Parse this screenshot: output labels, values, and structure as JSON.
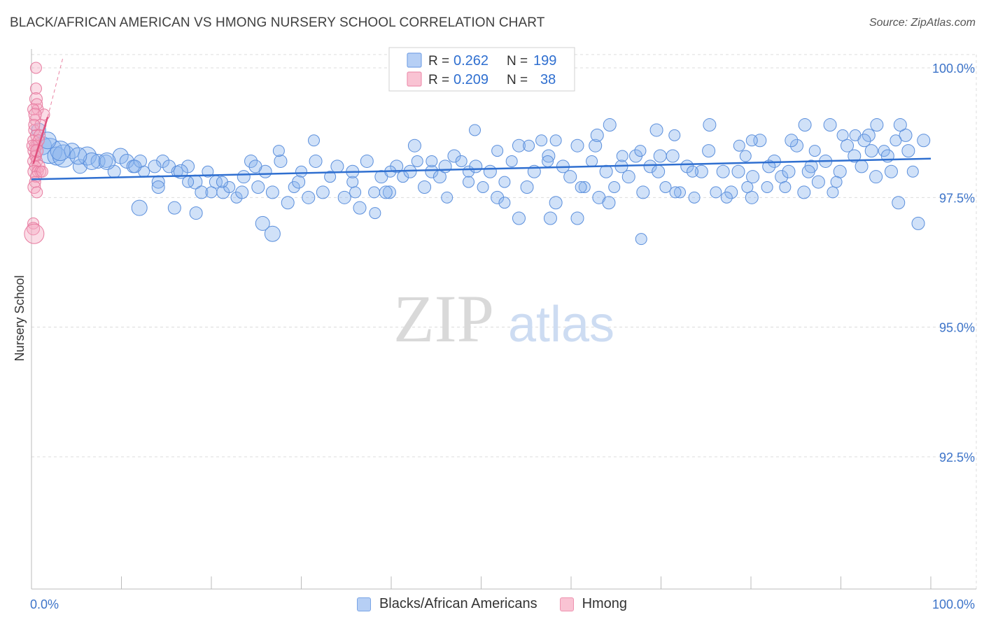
{
  "chart_data": {
    "type": "scatter",
    "title": "BLACK/AFRICAN AMERICAN VS HMONG NURSERY SCHOOL CORRELATION CHART",
    "source": "Source: ZipAtlas.com",
    "watermark": {
      "zip": "ZIP",
      "atlas": "atlas"
    },
    "xlabel": "",
    "ylabel": "Nursery School",
    "xlim": [
      0,
      100
    ],
    "ylim": [
      90.1,
      100.6
    ],
    "y_ticks": [
      {
        "value": 100.0,
        "label": "100.0%"
      },
      {
        "value": 97.5,
        "label": "97.5%"
      },
      {
        "value": 95.0,
        "label": "95.0%"
      },
      {
        "value": 92.5,
        "label": "92.5%"
      }
    ],
    "x_tick_labels": {
      "left": "0.0%",
      "right": "100.0%"
    },
    "grid": true,
    "legend_stats": [
      {
        "r_label": "R =",
        "r_value": "0.262",
        "n_label": "N =",
        "n_value": "199"
      },
      {
        "r_label": "R =",
        "r_value": "0.209",
        "n_label": "N =",
        "n_value": "38"
      }
    ],
    "series": [
      {
        "name": "Blacks/African Americans",
        "color": "#8ab4ee",
        "stroke": "#5b8fdc",
        "line_color": "#2f6fd0",
        "trend": {
          "x0": 0,
          "y0": 97.85,
          "x1": 100,
          "y1": 98.25
        },
        "points": [
          [
            1.2,
            98.5,
            13
          ],
          [
            2.0,
            98.4,
            18
          ],
          [
            2.8,
            98.3,
            13
          ],
          [
            3.6,
            98.3,
            16
          ],
          [
            4.5,
            98.4,
            11
          ],
          [
            5.4,
            98.1,
            10
          ],
          [
            6.2,
            98.3,
            13
          ],
          [
            7.4,
            98.2,
            10
          ],
          [
            8.3,
            98.2,
            9
          ],
          [
            9.2,
            98.0,
            9
          ],
          [
            9.9,
            98.3,
            11
          ],
          [
            10.6,
            98.2,
            10
          ],
          [
            11.3,
            98.1,
            9
          ],
          [
            12.1,
            98.2,
            9
          ],
          [
            12.5,
            98.0,
            8
          ],
          [
            14.1,
            97.8,
            9
          ],
          [
            14.6,
            98.2,
            9
          ],
          [
            15.3,
            98.1,
            9
          ],
          [
            16.2,
            98.0,
            8
          ],
          [
            17.4,
            98.1,
            9
          ],
          [
            18.2,
            97.8,
            10
          ],
          [
            18.9,
            97.6,
            9
          ],
          [
            19.6,
            98.0,
            8
          ],
          [
            20.5,
            97.8,
            9
          ],
          [
            21.3,
            97.6,
            9
          ],
          [
            22.0,
            97.7,
            8
          ],
          [
            22.8,
            97.5,
            8
          ],
          [
            23.6,
            97.9,
            9
          ],
          [
            24.4,
            98.2,
            9
          ],
          [
            25.2,
            97.7,
            9
          ],
          [
            26.0,
            98.0,
            9
          ],
          [
            26.8,
            97.6,
            9
          ],
          [
            27.7,
            98.2,
            9
          ],
          [
            28.5,
            97.4,
            9
          ],
          [
            29.2,
            97.7,
            8
          ],
          [
            30.0,
            98.0,
            8
          ],
          [
            30.8,
            97.5,
            9
          ],
          [
            31.6,
            98.2,
            9
          ],
          [
            32.4,
            97.6,
            9
          ],
          [
            33.2,
            97.9,
            8
          ],
          [
            34.0,
            98.1,
            9
          ],
          [
            34.8,
            97.5,
            9
          ],
          [
            35.7,
            97.8,
            8
          ],
          [
            36.5,
            97.3,
            9
          ],
          [
            37.3,
            98.2,
            9
          ],
          [
            38.1,
            97.6,
            8
          ],
          [
            38.9,
            97.9,
            9
          ],
          [
            39.8,
            97.6,
            9
          ],
          [
            40.6,
            98.1,
            9
          ],
          [
            41.3,
            97.9,
            8
          ],
          [
            42.1,
            98.0,
            9
          ],
          [
            42.9,
            98.2,
            8
          ],
          [
            43.7,
            97.7,
            9
          ],
          [
            44.5,
            98.0,
            9
          ],
          [
            45.4,
            97.9,
            9
          ],
          [
            46.2,
            97.5,
            8
          ],
          [
            47.0,
            98.3,
            9
          ],
          [
            47.8,
            98.2,
            8
          ],
          [
            48.6,
            98.0,
            8
          ],
          [
            49.4,
            98.1,
            9
          ],
          [
            50.2,
            97.7,
            8
          ],
          [
            51.0,
            98.0,
            9
          ],
          [
            51.8,
            97.5,
            9
          ],
          [
            52.6,
            97.8,
            8
          ],
          [
            53.4,
            98.2,
            8
          ],
          [
            54.2,
            97.1,
            9
          ],
          [
            55.1,
            97.7,
            9
          ],
          [
            55.9,
            98.0,
            9
          ],
          [
            56.7,
            98.6,
            8
          ],
          [
            57.5,
            98.3,
            9
          ],
          [
            58.3,
            97.4,
            9
          ],
          [
            59.1,
            98.1,
            9
          ],
          [
            59.9,
            97.9,
            9
          ],
          [
            60.7,
            98.5,
            9
          ],
          [
            61.5,
            97.7,
            8
          ],
          [
            62.3,
            98.2,
            8
          ],
          [
            63.1,
            97.5,
            9
          ],
          [
            63.9,
            98.0,
            9
          ],
          [
            64.8,
            97.7,
            8
          ],
          [
            65.6,
            98.1,
            9
          ],
          [
            66.4,
            97.9,
            9
          ],
          [
            67.2,
            98.3,
            9
          ],
          [
            68.0,
            97.6,
            9
          ],
          [
            68.8,
            98.1,
            9
          ],
          [
            69.7,
            98.0,
            9
          ],
          [
            70.5,
            97.7,
            8
          ],
          [
            71.3,
            98.3,
            9
          ],
          [
            72.1,
            97.6,
            8
          ],
          [
            72.9,
            98.1,
            9
          ],
          [
            73.7,
            97.5,
            8
          ],
          [
            74.5,
            98.0,
            9
          ],
          [
            75.3,
            98.4,
            9
          ],
          [
            76.1,
            97.6,
            8
          ],
          [
            76.9,
            98.0,
            9
          ],
          [
            77.8,
            97.6,
            9
          ],
          [
            78.6,
            98.0,
            9
          ],
          [
            79.4,
            98.3,
            8
          ],
          [
            80.2,
            97.9,
            9
          ],
          [
            81.0,
            98.6,
            9
          ],
          [
            81.8,
            97.7,
            8
          ],
          [
            82.6,
            98.2,
            9
          ],
          [
            83.4,
            97.9,
            9
          ],
          [
            84.2,
            98.0,
            9
          ],
          [
            85.1,
            98.5,
            9
          ],
          [
            85.9,
            97.6,
            9
          ],
          [
            86.7,
            98.1,
            9
          ],
          [
            87.5,
            97.8,
            9
          ],
          [
            88.3,
            98.2,
            9
          ],
          [
            89.1,
            97.6,
            8
          ],
          [
            89.9,
            98.0,
            9
          ],
          [
            90.7,
            98.5,
            9
          ],
          [
            91.5,
            98.3,
            9
          ],
          [
            92.3,
            98.1,
            9
          ],
          [
            93.1,
            98.7,
            9
          ],
          [
            93.9,
            97.9,
            9
          ],
          [
            94.8,
            98.4,
            8
          ],
          [
            95.6,
            98.0,
            9
          ],
          [
            96.4,
            97.4,
            9
          ],
          [
            97.2,
            98.7,
            9
          ],
          [
            98.0,
            98.0,
            8
          ],
          [
            98.6,
            97.0,
            9
          ],
          [
            99.2,
            98.6,
            9
          ],
          [
            38.2,
            97.2,
            8
          ],
          [
            42.6,
            98.5,
            9
          ],
          [
            49.3,
            98.8,
            8
          ],
          [
            54.2,
            98.5,
            9
          ],
          [
            57.4,
            98.2,
            8
          ],
          [
            62.7,
            98.5,
            9
          ],
          [
            67.7,
            98.4,
            8
          ],
          [
            71.5,
            98.7,
            8
          ],
          [
            75.4,
            98.9,
            9
          ],
          [
            78.7,
            98.5,
            8
          ],
          [
            84.5,
            98.6,
            9
          ],
          [
            88.8,
            98.9,
            9
          ],
          [
            94.0,
            98.9,
            9
          ],
          [
            96.6,
            98.9,
            9
          ],
          [
            90.2,
            98.7,
            8
          ],
          [
            87.1,
            98.4,
            8
          ],
          [
            86.0,
            98.9,
            9
          ],
          [
            80.1,
            98.6,
            8
          ],
          [
            69.5,
            98.8,
            9
          ],
          [
            64.3,
            98.9,
            9
          ],
          [
            58.3,
            98.6,
            8
          ],
          [
            51.8,
            98.4,
            8
          ],
          [
            46.0,
            98.1,
            9
          ],
          [
            44.5,
            98.2,
            8
          ],
          [
            39.9,
            98.0,
            8
          ],
          [
            35.7,
            98.0,
            9
          ],
          [
            31.4,
            98.6,
            8
          ],
          [
            27.5,
            98.4,
            8
          ],
          [
            24.9,
            98.1,
            9
          ],
          [
            21.2,
            97.8,
            8
          ],
          [
            18.3,
            97.2,
            9
          ],
          [
            15.9,
            97.3,
            9
          ],
          [
            14.1,
            97.7,
            9
          ],
          [
            12.0,
            97.3,
            11
          ],
          [
            25.7,
            97.0,
            10
          ],
          [
            26.8,
            96.8,
            11
          ],
          [
            57.7,
            97.1,
            9
          ],
          [
            60.7,
            97.1,
            9
          ],
          [
            67.8,
            96.7,
            8
          ],
          [
            77.3,
            97.5,
            8
          ],
          [
            80.1,
            97.5,
            9
          ],
          [
            52.6,
            97.4,
            8
          ],
          [
            55.3,
            98.5,
            8
          ],
          [
            62.9,
            98.7,
            9
          ],
          [
            65.7,
            98.3,
            8
          ],
          [
            69.9,
            98.3,
            9
          ],
          [
            73.5,
            98.0,
            8
          ],
          [
            82.0,
            98.1,
            9
          ],
          [
            86.4,
            98.0,
            9
          ],
          [
            91.6,
            98.7,
            8
          ],
          [
            92.6,
            98.6,
            9
          ],
          [
            95.2,
            98.3,
            9
          ],
          [
            97.5,
            98.4,
            9
          ],
          [
            39.4,
            97.6,
            9
          ],
          [
            36.0,
            97.6,
            8
          ],
          [
            29.7,
            97.8,
            9
          ],
          [
            23.4,
            97.6,
            9
          ],
          [
            20.0,
            97.6,
            8
          ],
          [
            17.4,
            97.8,
            8
          ],
          [
            16.6,
            98.0,
            10
          ],
          [
            13.7,
            98.1,
            9
          ],
          [
            11.5,
            98.1,
            9
          ],
          [
            8.4,
            98.2,
            12
          ],
          [
            6.7,
            98.2,
            12
          ],
          [
            5.2,
            98.3,
            12
          ],
          [
            3.2,
            98.4,
            14
          ],
          [
            1.8,
            98.6,
            12
          ],
          [
            0.8,
            98.8,
            10
          ],
          [
            48.6,
            97.8,
            8
          ],
          [
            61.1,
            97.7,
            8
          ],
          [
            64.2,
            97.4,
            9
          ],
          [
            71.6,
            97.6,
            8
          ],
          [
            79.6,
            97.7,
            8
          ],
          [
            83.8,
            97.7,
            8
          ],
          [
            89.5,
            97.8,
            8
          ],
          [
            93.4,
            98.4,
            9
          ],
          [
            96.1,
            98.6,
            8
          ]
        ]
      },
      {
        "name": "Hmong",
        "color": "#f5a8c0",
        "stroke": "#e77ba0",
        "line_color": "#e0507d",
        "trend": {
          "x0": 0.2,
          "y0": 98.15,
          "x1": 1.8,
          "y1": 99.05
        },
        "trend_ext": {
          "x0": 1.8,
          "y0": 99.05,
          "x1": 3.5,
          "y1": 100.2
        },
        "points": [
          [
            0.5,
            100.0,
            8
          ],
          [
            0.5,
            99.6,
            8
          ],
          [
            0.5,
            99.4,
            9
          ],
          [
            0.7,
            99.2,
            8
          ],
          [
            0.4,
            99.0,
            8
          ],
          [
            0.3,
            98.8,
            8
          ],
          [
            0.5,
            98.7,
            8
          ],
          [
            0.2,
            98.6,
            8
          ],
          [
            0.4,
            98.5,
            8
          ],
          [
            0.6,
            98.5,
            8
          ],
          [
            0.3,
            98.4,
            9
          ],
          [
            0.5,
            98.3,
            8
          ],
          [
            0.4,
            98.3,
            8
          ],
          [
            0.2,
            98.2,
            8
          ],
          [
            0.6,
            98.2,
            8
          ],
          [
            0.8,
            98.1,
            9
          ],
          [
            0.4,
            98.1,
            8
          ],
          [
            0.3,
            98.0,
            9
          ],
          [
            0.7,
            98.0,
            8
          ],
          [
            1.0,
            98.0,
            8
          ],
          [
            0.5,
            97.9,
            8
          ],
          [
            0.4,
            97.8,
            8
          ],
          [
            0.3,
            97.7,
            9
          ],
          [
            0.6,
            97.6,
            8
          ],
          [
            0.2,
            97.0,
            8
          ],
          [
            0.2,
            96.9,
            9
          ],
          [
            0.3,
            96.8,
            14
          ],
          [
            1.4,
            99.1,
            8
          ],
          [
            1.0,
            98.9,
            8
          ],
          [
            0.9,
            98.7,
            8
          ],
          [
            0.6,
            99.3,
            8
          ],
          [
            0.2,
            99.2,
            8
          ],
          [
            0.8,
            98.6,
            8
          ],
          [
            1.2,
            98.0,
            8
          ],
          [
            0.1,
            98.5,
            8
          ],
          [
            0.4,
            99.1,
            9
          ],
          [
            0.3,
            98.9,
            8
          ],
          [
            0.6,
            98.4,
            9
          ]
        ]
      }
    ]
  }
}
